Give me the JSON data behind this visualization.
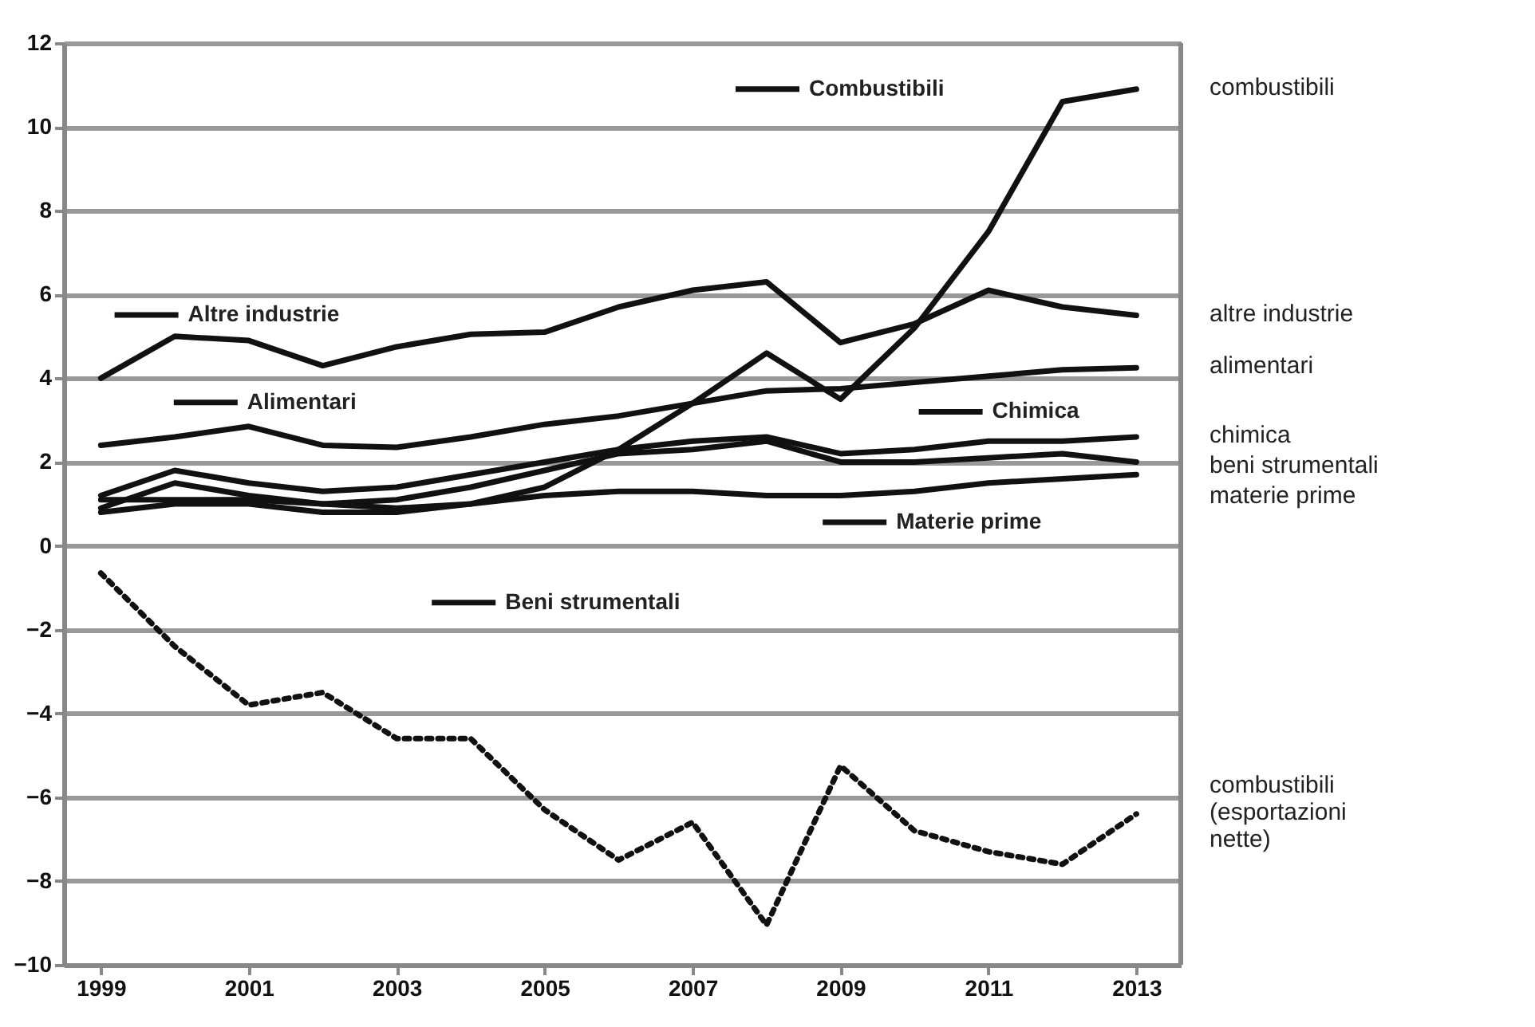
{
  "chart_data": {
    "type": "line",
    "x": [
      1999,
      2000,
      2001,
      2002,
      2003,
      2004,
      2005,
      2006,
      2007,
      2008,
      2009,
      2010,
      2011,
      2012,
      2013
    ],
    "series": [
      {
        "name": "combustibili",
        "color": "#111111",
        "values": [
          0.8,
          1.0,
          1.0,
          0.8,
          0.8,
          1.0,
          1.4,
          2.3,
          3.4,
          4.6,
          3.5,
          5.2,
          7.5,
          10.6,
          10.9
        ]
      },
      {
        "name": "altre industrie",
        "color": "#111111",
        "values": [
          4.0,
          5.0,
          4.9,
          4.3,
          4.75,
          5.05,
          5.1,
          5.7,
          6.1,
          6.3,
          4.85,
          5.3,
          6.1,
          5.7,
          5.5
        ]
      },
      {
        "name": "alimentari",
        "color": "#111111",
        "values": [
          2.4,
          2.6,
          2.85,
          2.4,
          2.35,
          2.6,
          2.9,
          3.1,
          3.4,
          3.7,
          3.75,
          3.9,
          4.05,
          4.2,
          4.25
        ]
      },
      {
        "name": "chimica",
        "color": "#111111",
        "values": [
          1.2,
          1.8,
          1.5,
          1.3,
          1.4,
          1.7,
          2.0,
          2.3,
          2.5,
          2.6,
          2.2,
          2.3,
          2.5,
          2.5,
          2.6
        ]
      },
      {
        "name": "beni strumentali",
        "color": "#111111",
        "values": [
          0.9,
          1.5,
          1.2,
          1.0,
          1.1,
          1.4,
          1.8,
          2.2,
          2.3,
          2.5,
          2.0,
          2.0,
          2.1,
          2.2,
          2.0
        ]
      },
      {
        "name": "materie prime",
        "color": "#111111",
        "values": [
          1.1,
          1.1,
          1.1,
          1.0,
          0.9,
          1.0,
          1.2,
          1.3,
          1.3,
          1.2,
          1.2,
          1.3,
          1.5,
          1.6,
          1.7
        ]
      },
      {
        "name": "combustibili (esportazioni nette)",
        "color": "#111111",
        "line_style": "dotted",
        "values": [
          -0.65,
          -2.4,
          -3.8,
          -3.5,
          -4.6,
          -4.6,
          -6.3,
          -7.5,
          -6.6,
          -9.05,
          -5.25,
          -6.8,
          -7.3,
          -7.6,
          -6.4
        ]
      }
    ],
    "annotations": [
      "Combustibili",
      "Altre industrie",
      "Alimentari",
      "Chimica",
      "Beni strumentali",
      "Materie prime"
    ],
    "xlim": [
      1998.5,
      2013.6
    ],
    "xticks": [
      1999,
      2001,
      2003,
      2005,
      2007,
      2009,
      2011,
      2013
    ],
    "ylim": [
      -10,
      12
    ],
    "yticks": [
      -10,
      -8,
      -6,
      -4,
      -2,
      0,
      2,
      4,
      6,
      8,
      10,
      12
    ],
    "grid": "y",
    "legend": false,
    "line_style": "solid",
    "marker": "none"
  }
}
